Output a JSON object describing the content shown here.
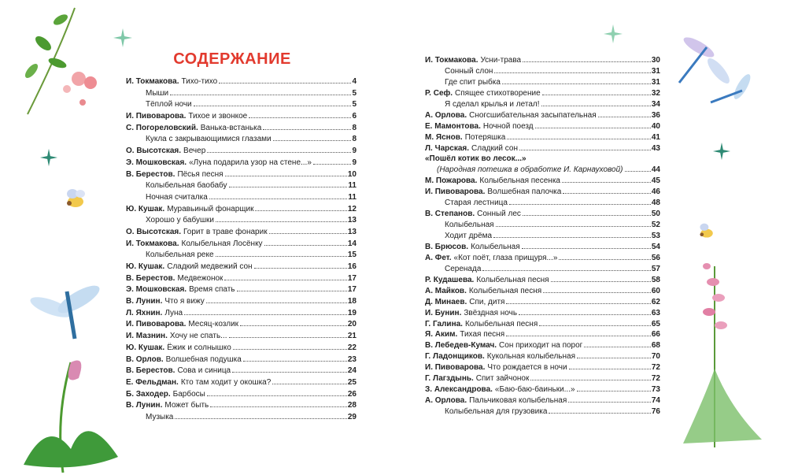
{
  "heading": "СОДЕРЖАНИЕ",
  "accent_color": "#e23a2e",
  "left_column": [
    {
      "author": "И. Токмакова.",
      "title": "Тихо-тихо",
      "page": "4",
      "indent": 0
    },
    {
      "author": "",
      "title": "Мыши",
      "page": "5",
      "indent": 1
    },
    {
      "author": "",
      "title": "Тёплой ночи",
      "page": "5",
      "indent": 1
    },
    {
      "author": "И. Пивоварова.",
      "title": "Тихое и звонкое",
      "page": "6",
      "indent": 0
    },
    {
      "author": "С. Погореловский.",
      "title": "Ванька-встанька",
      "page": "8",
      "indent": 0
    },
    {
      "author": "",
      "title": "Кукла с закрывающимися глазами",
      "page": "8",
      "indent": 1
    },
    {
      "author": "О. Высотская.",
      "title": "Вечер",
      "page": "9",
      "indent": 0
    },
    {
      "author": "Э. Мошковская.",
      "title": "«Луна подарила узор на стене...»",
      "page": "9",
      "indent": 0
    },
    {
      "author": "В. Берестов.",
      "title": "Пёсья песня",
      "page": "10",
      "indent": 0
    },
    {
      "author": "",
      "title": "Колыбельная баобабу",
      "page": "11",
      "indent": 1
    },
    {
      "author": "",
      "title": "Ночная считалка",
      "page": "11",
      "indent": 1
    },
    {
      "author": "Ю. Кушак.",
      "title": "Муравьиный фонарщик",
      "page": "12",
      "indent": 0
    },
    {
      "author": "",
      "title": "Хорошо у бабушки",
      "page": "13",
      "indent": 1
    },
    {
      "author": "О. Высотская.",
      "title": "Горит в траве фонарик",
      "page": "13",
      "indent": 0
    },
    {
      "author": "И. Токмакова.",
      "title": "Колыбельная Лосёнку",
      "page": "14",
      "indent": 0
    },
    {
      "author": "",
      "title": "Колыбельная реке",
      "page": "15",
      "indent": 1
    },
    {
      "author": "Ю. Кушак.",
      "title": "Сладкий медвежий сон",
      "page": "16",
      "indent": 0
    },
    {
      "author": "В. Берестов.",
      "title": "Медвежонок",
      "page": "17",
      "indent": 0
    },
    {
      "author": "Э. Мошковская.",
      "title": "Время спать",
      "page": "17",
      "indent": 0
    },
    {
      "author": "В. Лунин.",
      "title": "Что я вижу",
      "page": "18",
      "indent": 0
    },
    {
      "author": "Л. Яхнин.",
      "title": "Луна",
      "page": "19",
      "indent": 0
    },
    {
      "author": "И. Пивоварова.",
      "title": "Месяц-козлик",
      "page": "20",
      "indent": 0
    },
    {
      "author": "И. Мазнин.",
      "title": "Хочу не спать...",
      "page": "21",
      "indent": 0
    },
    {
      "author": "Ю. Кушак.",
      "title": "Ёжик и солнышко",
      "page": "22",
      "indent": 0
    },
    {
      "author": "В. Орлов.",
      "title": "Волшебная подушка",
      "page": "23",
      "indent": 0
    },
    {
      "author": "В. Берестов.",
      "title": "Сова и синица",
      "page": "24",
      "indent": 0
    },
    {
      "author": "Е. Фельдман.",
      "title": "Кто там ходит у окошка?",
      "page": "25",
      "indent": 0
    },
    {
      "author": "Б. Заходер.",
      "title": "Барбосы",
      "page": "26",
      "indent": 0
    },
    {
      "author": "В. Лунин.",
      "title": "Может быть",
      "page": "28",
      "indent": 0
    },
    {
      "author": "",
      "title": "Музыка",
      "page": "29",
      "indent": 1
    }
  ],
  "right_column": [
    {
      "author": "И. Токмакова.",
      "title": "Усни-трава",
      "page": "30",
      "indent": 0
    },
    {
      "author": "",
      "title": "Сонный слон",
      "page": "31",
      "indent": 1
    },
    {
      "author": "",
      "title": "Где спит рыбка",
      "page": "31",
      "indent": 1
    },
    {
      "author": "Р. Сеф.",
      "title": "Спящее стихотворение",
      "page": "32",
      "indent": 0
    },
    {
      "author": "",
      "title": "Я сделал крылья и летал!",
      "page": "34",
      "indent": 1
    },
    {
      "author": "А. Орлова.",
      "title": "Сногсшибательная засыпательная",
      "page": "36",
      "indent": 0
    },
    {
      "author": "Е. Мамонтова.",
      "title": "Ночной поезд",
      "page": "40",
      "indent": 0
    },
    {
      "author": "М. Яснов.",
      "title": "Потеряшка",
      "page": "41",
      "indent": 0
    },
    {
      "author": "Л. Чарская.",
      "title": "Сладкий сон",
      "page": "43",
      "indent": 0
    },
    {
      "author": "",
      "title": "«Пошёл котик во лесок...»",
      "page": "",
      "indent": 0,
      "bold": true
    },
    {
      "author": "",
      "title": "(Народная потешка в обработке И. Карнауховой)",
      "page": "44",
      "indent": 2,
      "italic": true
    },
    {
      "author": "М. Пожарова.",
      "title": "Колыбельная песенка",
      "page": "45",
      "indent": 0
    },
    {
      "author": "И. Пивоварова.",
      "title": "Волшебная палочка",
      "page": "46",
      "indent": 0
    },
    {
      "author": "",
      "title": "Старая лестница",
      "page": "48",
      "indent": 1
    },
    {
      "author": "В. Степанов.",
      "title": "Сонный лес",
      "page": "50",
      "indent": 0
    },
    {
      "author": "",
      "title": "Колыбельная",
      "page": "52",
      "indent": 1
    },
    {
      "author": "",
      "title": "Ходит дрёма",
      "page": "53",
      "indent": 1
    },
    {
      "author": "В. Брюсов.",
      "title": "Колыбельная",
      "page": "54",
      "indent": 0
    },
    {
      "author": "А. Фет.",
      "title": "«Кот поёт, глаза прищуря...»",
      "page": "56",
      "indent": 0
    },
    {
      "author": "",
      "title": "Серенада",
      "page": "57",
      "indent": 1
    },
    {
      "author": "Р. Кудашева.",
      "title": "Колыбельная песня",
      "page": "58",
      "indent": 0
    },
    {
      "author": "А. Майков.",
      "title": "Колыбельная песня",
      "page": "60",
      "indent": 0
    },
    {
      "author": "Д. Минаев.",
      "title": "Спи, дитя",
      "page": "62",
      "indent": 0
    },
    {
      "author": "И. Бунин.",
      "title": "Звёздная ночь",
      "page": "63",
      "indent": 0
    },
    {
      "author": "Г. Галина.",
      "title": "Колыбельная песня",
      "page": "65",
      "indent": 0
    },
    {
      "author": "Я. Аким.",
      "title": "Тихая песня",
      "page": "66",
      "indent": 0
    },
    {
      "author": "В. Лебедев-Кумач.",
      "title": "Сон приходит на порог",
      "page": "68",
      "indent": 0
    },
    {
      "author": "Г. Ладонщиков.",
      "title": "Кукольная колыбельная",
      "page": "70",
      "indent": 0
    },
    {
      "author": "И. Пивоварова.",
      "title": "Что рождается в ночи",
      "page": "72",
      "indent": 0
    },
    {
      "author": "Г. Лагздынь.",
      "title": "Спит зайчонок",
      "page": "72",
      "indent": 0
    },
    {
      "author": "З. Александрова.",
      "title": "«Баю-баю-баиньки...»",
      "page": "73",
      "indent": 0
    },
    {
      "author": "А. Орлова.",
      "title": "Пальчиковая колыбельная",
      "page": "74",
      "indent": 0
    },
    {
      "author": "",
      "title": "Колыбельная для грузовика",
      "page": "76",
      "indent": 1
    }
  ]
}
